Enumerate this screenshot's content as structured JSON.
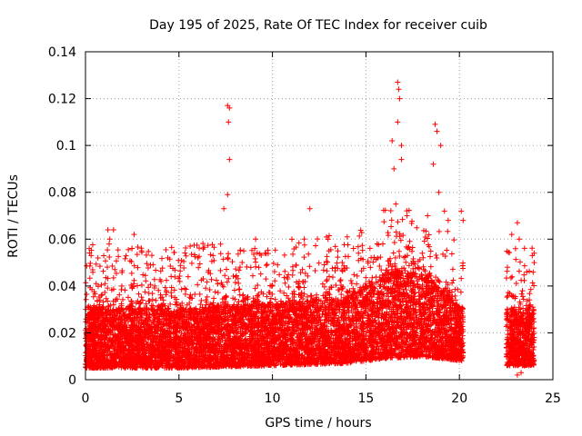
{
  "chart_data": {
    "type": "scatter",
    "title": "Day 195 of 2025, Rate Of TEC Index for receiver cuib",
    "xlabel": "GPS time / hours",
    "ylabel": "ROTI / TECUs",
    "xlim": [
      0,
      25
    ],
    "ylim": [
      0,
      0.14
    ],
    "xticks": [
      0,
      5,
      10,
      15,
      20,
      25
    ],
    "xtick_labels": [
      "0",
      "5",
      "10",
      "15",
      "20",
      "25"
    ],
    "yticks": [
      0,
      0.02,
      0.04,
      0.06,
      0.08,
      0.1,
      0.12,
      0.14
    ],
    "ytick_labels": [
      "0",
      "0.02",
      "0.04",
      "0.06",
      "0.08",
      "0.1",
      "0.12",
      "0.14"
    ],
    "grid": true,
    "marker": "+",
    "color": "#ff0000",
    "series": [
      {
        "name": "ROTI",
        "segments": [
          {
            "x_start": 0.0,
            "x_end": 20.2
          },
          {
            "x_start": 22.5,
            "x_end": 24.0
          }
        ],
        "band_profile": [
          {
            "x": 0,
            "lo": 0.005,
            "hi": 0.03
          },
          {
            "x": 5,
            "lo": 0.005,
            "hi": 0.03
          },
          {
            "x": 10,
            "lo": 0.006,
            "hi": 0.032
          },
          {
            "x": 14,
            "lo": 0.007,
            "hi": 0.035
          },
          {
            "x": 16,
            "lo": 0.009,
            "hi": 0.045
          },
          {
            "x": 18,
            "lo": 0.01,
            "hi": 0.045
          },
          {
            "x": 20.2,
            "lo": 0.008,
            "hi": 0.03
          },
          {
            "x": 22.5,
            "lo": 0.006,
            "hi": 0.03
          },
          {
            "x": 24,
            "lo": 0.006,
            "hi": 0.03
          }
        ],
        "notable_points": [
          {
            "x": 7.6,
            "y": 0.117
          },
          {
            "x": 7.7,
            "y": 0.116
          },
          {
            "x": 7.65,
            "y": 0.11
          },
          {
            "x": 7.7,
            "y": 0.094
          },
          {
            "x": 7.6,
            "y": 0.079
          },
          {
            "x": 7.4,
            "y": 0.073
          },
          {
            "x": 0.2,
            "y": 0.056
          },
          {
            "x": 0.3,
            "y": 0.053
          },
          {
            "x": 1.2,
            "y": 0.064
          },
          {
            "x": 1.5,
            "y": 0.064
          },
          {
            "x": 1.3,
            "y": 0.06
          },
          {
            "x": 2.6,
            "y": 0.062
          },
          {
            "x": 3.0,
            "y": 0.055
          },
          {
            "x": 4.4,
            "y": 0.052
          },
          {
            "x": 5.6,
            "y": 0.057
          },
          {
            "x": 9.1,
            "y": 0.06
          },
          {
            "x": 9.6,
            "y": 0.054
          },
          {
            "x": 11.7,
            "y": 0.06
          },
          {
            "x": 12.0,
            "y": 0.073
          },
          {
            "x": 14.0,
            "y": 0.061
          },
          {
            "x": 14.6,
            "y": 0.054
          },
          {
            "x": 15.6,
            "y": 0.058
          },
          {
            "x": 16.5,
            "y": 0.09
          },
          {
            "x": 16.7,
            "y": 0.127
          },
          {
            "x": 16.75,
            "y": 0.124
          },
          {
            "x": 16.8,
            "y": 0.12
          },
          {
            "x": 16.7,
            "y": 0.11
          },
          {
            "x": 16.9,
            "y": 0.1
          },
          {
            "x": 16.4,
            "y": 0.102
          },
          {
            "x": 16.9,
            "y": 0.094
          },
          {
            "x": 16.6,
            "y": 0.075
          },
          {
            "x": 17.2,
            "y": 0.07
          },
          {
            "x": 18.3,
            "y": 0.07
          },
          {
            "x": 18.6,
            "y": 0.092
          },
          {
            "x": 18.7,
            "y": 0.109
          },
          {
            "x": 18.8,
            "y": 0.106
          },
          {
            "x": 19.0,
            "y": 0.1
          },
          {
            "x": 18.9,
            "y": 0.08
          },
          {
            "x": 19.2,
            "y": 0.072
          },
          {
            "x": 19.4,
            "y": 0.068
          },
          {
            "x": 20.1,
            "y": 0.072
          },
          {
            "x": 20.2,
            "y": 0.068
          },
          {
            "x": 22.8,
            "y": 0.062
          },
          {
            "x": 23.1,
            "y": 0.067
          },
          {
            "x": 23.2,
            "y": 0.06
          },
          {
            "x": 23.9,
            "y": 0.053
          },
          {
            "x": 24.0,
            "y": 0.05
          },
          {
            "x": 23.6,
            "y": 0.046
          },
          {
            "x": 23.1,
            "y": 0.002
          },
          {
            "x": 23.3,
            "y": 0.003
          }
        ]
      }
    ]
  }
}
